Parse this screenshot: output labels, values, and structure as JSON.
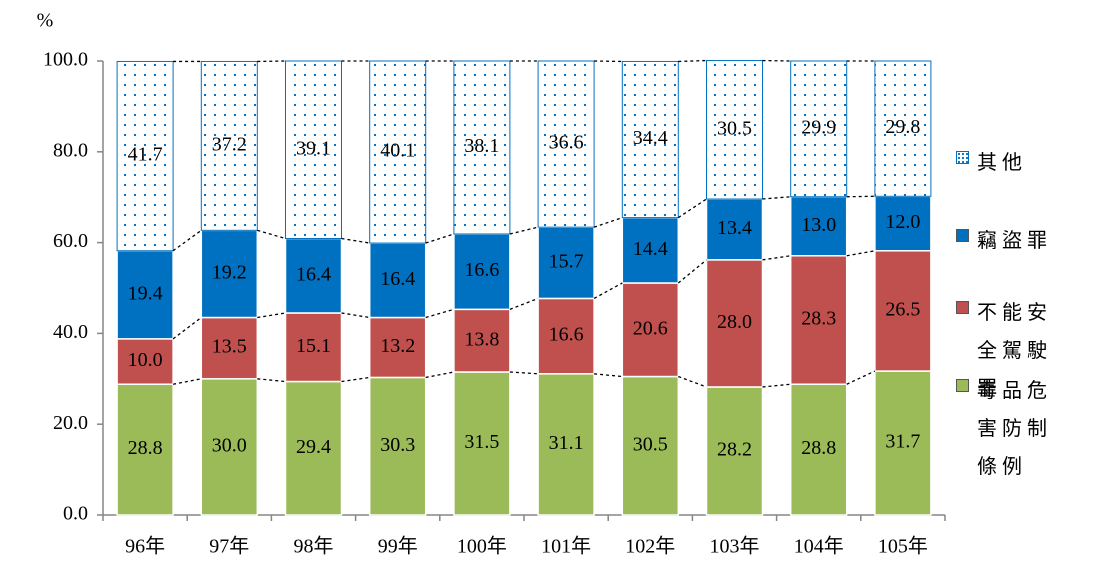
{
  "chart_data": {
    "type": "stacked_bar",
    "y_label": "%",
    "categories": [
      "96年",
      "97年",
      "98年",
      "99年",
      "100年",
      "101年",
      "102年",
      "103年",
      "104年",
      "105年"
    ],
    "ylim": [
      0,
      100
    ],
    "yticks": [
      {
        "value": 0,
        "label": "0.0"
      },
      {
        "value": 20,
        "label": "20.0"
      },
      {
        "value": 40,
        "label": "40.0"
      },
      {
        "value": 60,
        "label": "60.0"
      },
      {
        "value": 80,
        "label": "80.0"
      },
      {
        "value": 100,
        "label": "100.0"
      }
    ],
    "legend": "right",
    "connectors": "dashed",
    "series": [
      {
        "name": "毒品危害防制條例",
        "color": "#9bbb59",
        "values": [
          28.8,
          30,
          29.4,
          30.3,
          31.5,
          31.1,
          30.5,
          28.2,
          28.8,
          31.7
        ],
        "value_labels": [
          "28.8",
          "30.0",
          "29.4",
          "30.3",
          "31.5",
          "31.1",
          "30.5",
          "28.2",
          "28.8",
          "31.7"
        ]
      },
      {
        "name": "不能安全駕駛罪",
        "color": "#c0504d",
        "values": [
          10,
          13.5,
          15.1,
          13.2,
          13.8,
          16.6,
          20.6,
          28,
          28.3,
          26.5
        ],
        "value_labels": [
          "10.0",
          "13.5",
          "15.1",
          "13.2",
          "13.8",
          "16.6",
          "20.6",
          "28.0",
          "28.3",
          "26.5"
        ]
      },
      {
        "name": "竊盜罪",
        "color": "#0070c0",
        "values": [
          19.4,
          19.2,
          16.4,
          16.4,
          16.6,
          15.7,
          14.4,
          13.4,
          13,
          12
        ],
        "value_labels": [
          "19.4",
          "19.2",
          "16.4",
          "16.4",
          "16.6",
          "15.7",
          "14.4",
          "13.4",
          "13.0",
          "12.0"
        ]
      },
      {
        "name": "其他",
        "color": "#0070c0",
        "pattern": "dotted",
        "values": [
          41.7,
          37.2,
          39.1,
          40.1,
          38.1,
          36.6,
          34.4,
          30.5,
          29.9,
          29.8
        ],
        "value_labels": [
          "41.7",
          "37.2",
          "39.1",
          "40.1",
          "38.1",
          "36.6",
          "34.4",
          "30.5",
          "29.9",
          "29.8"
        ]
      }
    ]
  }
}
